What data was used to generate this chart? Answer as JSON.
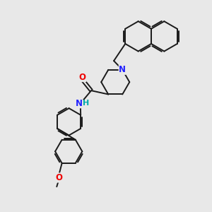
{
  "background_color": "#e8e8e8",
  "bond_color": "#1a1a1a",
  "atom_colors": {
    "N": "#2020ff",
    "O": "#ee0000",
    "NH_N": "#2020ff",
    "NH_H": "#00aaaa",
    "C": "#1a1a1a"
  },
  "figsize": [
    3.0,
    3.0
  ],
  "dpi": 100
}
